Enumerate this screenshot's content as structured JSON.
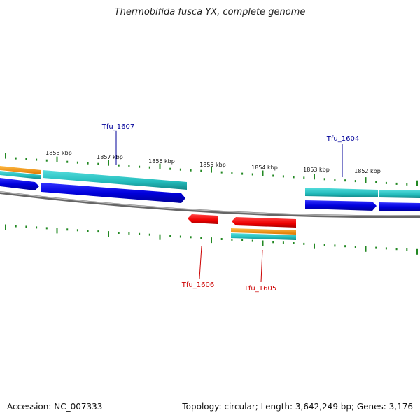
{
  "title": "Thermobifida fusca YX, complete genome",
  "accession": "Accession: NC_007333",
  "summary": "Topology: circular; Length: 3,642,249 bp; Genes: 3,176",
  "colors": {
    "backbone": "#888888",
    "forward_cds": "#0000ee",
    "reverse_cds": "#ee0000",
    "rna_cyan": "#22cccc",
    "rna_orange": "#ff9900",
    "ticks": "#228822",
    "label_forward": "#000099",
    "label_reverse": "#cc0000"
  },
  "kbp_labels": [
    "1858 kbp",
    "1857 kbp",
    "1856 kbp",
    "1855 kbp",
    "1854 kbp",
    "1853 kbp",
    "1852 kbp"
  ],
  "gene_labels": {
    "forward": [
      "Tfu_1607",
      "Tfu_1604"
    ],
    "reverse": [
      "Tfu_1606",
      "Tfu_1605"
    ]
  }
}
